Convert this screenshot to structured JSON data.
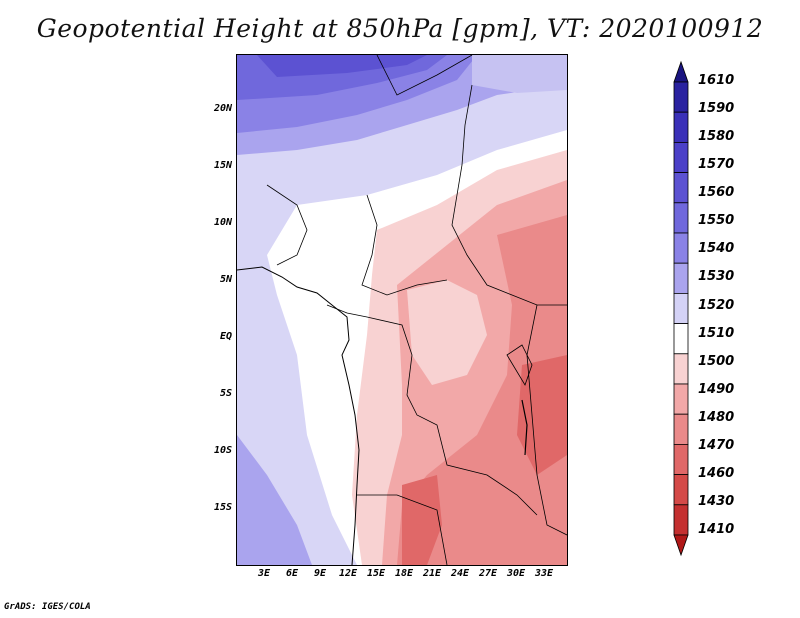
{
  "title": "Geopotential Height at 850hPa [gpm], VT: 2020100912",
  "credit": "GrADS: IGES/COLA",
  "map": {
    "region": "Central Africa",
    "lat_labels": [
      "20N",
      "15N",
      "10N",
      "5N",
      "EQ",
      "5S",
      "10S",
      "15S"
    ],
    "lon_labels": [
      "3E",
      "6E",
      "9E",
      "12E",
      "15E",
      "18E",
      "21E",
      "24E",
      "27E",
      "30E",
      "33E"
    ]
  },
  "colorbar": {
    "levels": [
      "1610",
      "1590",
      "1580",
      "1570",
      "1560",
      "1550",
      "1540",
      "1530",
      "1520",
      "1510",
      "1500",
      "1490",
      "1480",
      "1470",
      "1460",
      "1430",
      "1410"
    ],
    "colors": [
      "#1a1480",
      "#2a22a0",
      "#3a30b8",
      "#4b40c8",
      "#5c52d2",
      "#7068dc",
      "#8a82e6",
      "#aaa4ee",
      "#d4d2f6",
      "#ffffff",
      "#f8d2d2",
      "#f2a8a8",
      "#ea8a8a",
      "#e06868",
      "#d44a48",
      "#c43030",
      "#b01818"
    ]
  }
}
